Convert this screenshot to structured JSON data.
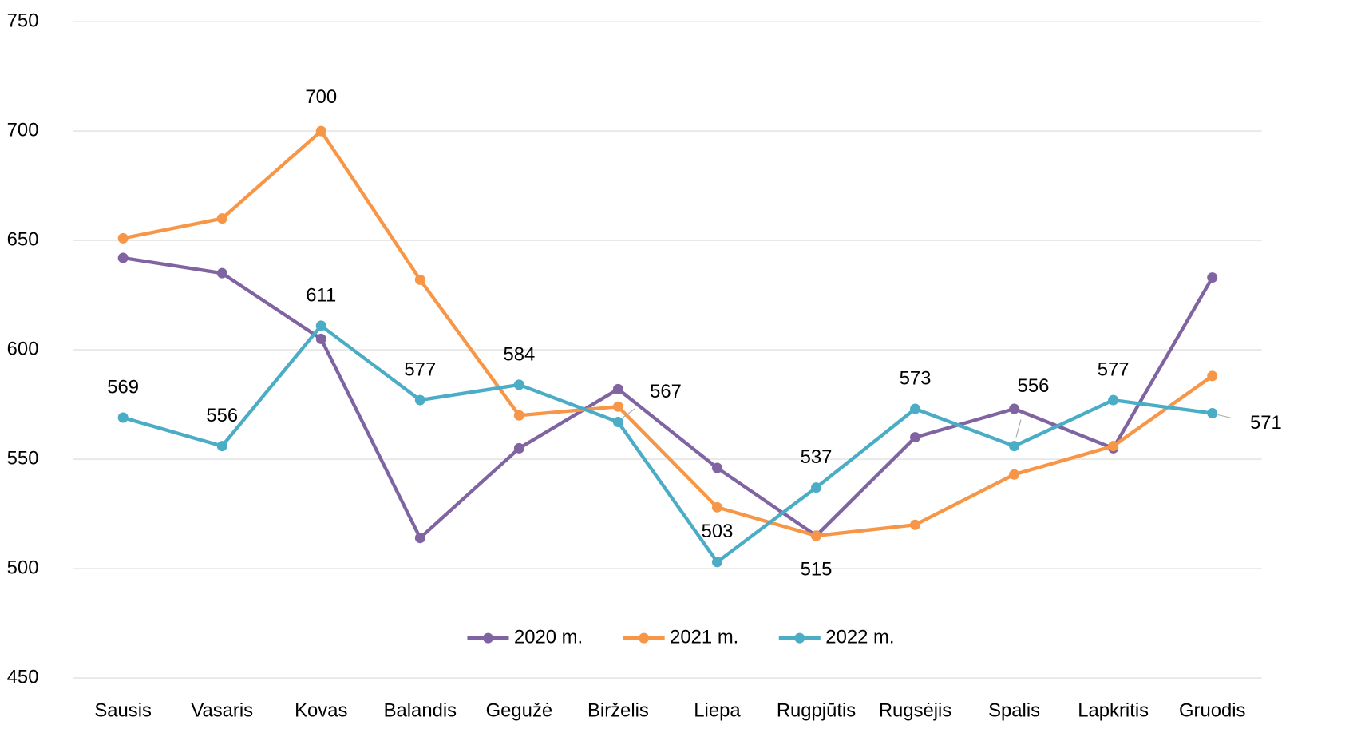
{
  "chart_data": {
    "type": "line",
    "categories": [
      "Sausis",
      "Vasaris",
      "Kovas",
      "Balandis",
      "Gegužė",
      "Birželis",
      "Liepa",
      "Rugpjūtis",
      "Rugsėjis",
      "Spalis",
      "Lapkritis",
      "Gruodis"
    ],
    "series": [
      {
        "name": "2020 m.",
        "color": "#8064a2",
        "values": [
          642,
          635,
          605,
          514,
          555,
          582,
          546,
          515,
          560,
          573,
          555,
          633
        ],
        "labeled_points": []
      },
      {
        "name": "2021 m.",
        "color": "#f79646",
        "values": [
          651,
          660,
          700,
          632,
          570,
          574,
          528,
          515,
          520,
          543,
          556,
          588
        ],
        "labeled_points": [
          2,
          7
        ]
      },
      {
        "name": "2022 m.",
        "color": "#4bacc6",
        "values": [
          569,
          556,
          611,
          577,
          584,
          567,
          503,
          537,
          573,
          556,
          577,
          571
        ],
        "labeled_points": [
          0,
          1,
          2,
          3,
          4,
          5,
          6,
          7,
          8,
          9,
          10,
          11
        ]
      }
    ],
    "ylim": [
      450,
      750
    ],
    "yticks": [
      450,
      500,
      550,
      600,
      650,
      700,
      750
    ],
    "grid": true,
    "legend": "bottom"
  }
}
